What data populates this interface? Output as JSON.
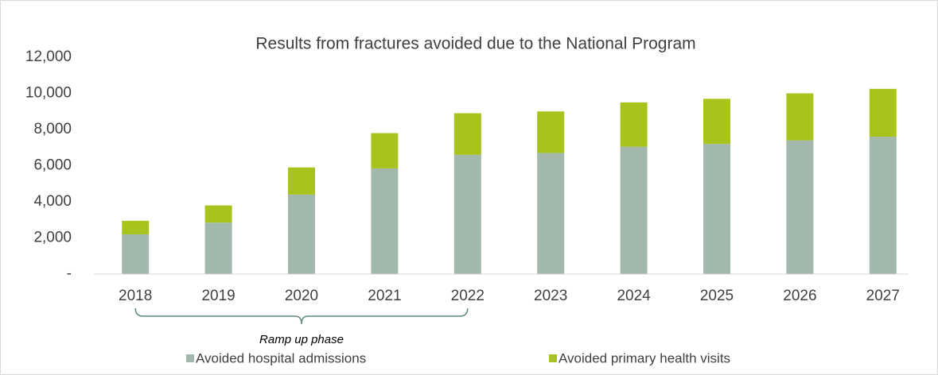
{
  "chart_data": {
    "type": "stacked_bar",
    "title": "Results from fractures avoided due to the National Program",
    "categories": [
      "2018",
      "2019",
      "2020",
      "2021",
      "2022",
      "2023",
      "2024",
      "2025",
      "2026",
      "2027"
    ],
    "series": [
      {
        "name": "Avoided hospital admissions",
        "color": "#a3b8ad",
        "values": [
          2200,
          2850,
          4400,
          5850,
          6600,
          6700,
          7050,
          7200,
          7400,
          7600
        ]
      },
      {
        "name": "Avoided primary health visits",
        "color": "#a8c41c",
        "values": [
          750,
          950,
          1500,
          1950,
          2300,
          2300,
          2450,
          2500,
          2600,
          2650
        ]
      }
    ],
    "ylim": [
      0,
      12000
    ],
    "yticks": [
      {
        "value": 0,
        "label": "-"
      },
      {
        "value": 2000,
        "label": "2,000"
      },
      {
        "value": 4000,
        "label": "4,000"
      },
      {
        "value": 6000,
        "label": "6,000"
      },
      {
        "value": 8000,
        "label": "8,000"
      },
      {
        "value": 10000,
        "label": "10,000"
      },
      {
        "value": 12000,
        "label": "12,000"
      }
    ],
    "annotation": "Ramp up phase",
    "legend": "bottom"
  }
}
